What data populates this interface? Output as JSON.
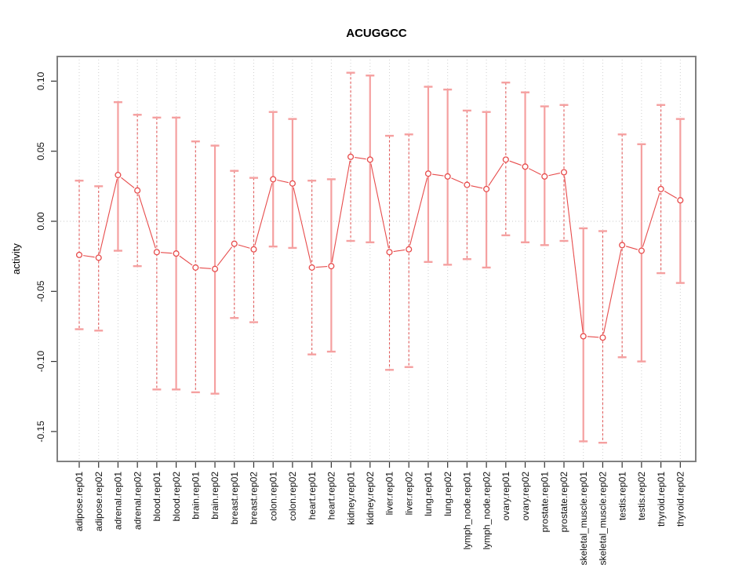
{
  "chart_data": {
    "type": "line",
    "subtype": "points-with-error-bars",
    "title": "ACUGGCC",
    "xlabel": "",
    "ylabel": "activity",
    "ylim": [
      -0.17,
      0.12
    ],
    "ytick_values": [
      0.1,
      0.05,
      0.0,
      -0.05,
      -0.1,
      -0.15
    ],
    "ytick_labels": [
      "0.10",
      "0.05",
      "0.00",
      "-0.05",
      "-0.10",
      "-0.15"
    ],
    "grid": "vertical dotted gridline at every category; dotted horizontal reference line at y = 0",
    "legend_position": "none",
    "marker": "open-circle",
    "categories": [
      "adipose.rep01",
      "adipose.rep02",
      "adrenal.rep01",
      "adrenal.rep02",
      "blood.rep01",
      "blood.rep02",
      "brain.rep01",
      "brain.rep02",
      "breast.rep01",
      "breast.rep02",
      "colon.rep01",
      "colon.rep02",
      "heart.rep01",
      "heart.rep02",
      "kidney.rep01",
      "kidney.rep02",
      "liver.rep01",
      "liver.rep02",
      "lung.rep01",
      "lung.rep02",
      "lymph_node.rep01",
      "lymph_node.rep02",
      "ovary.rep01",
      "ovary.rep02",
      "prostate.rep01",
      "prostate.rep02",
      "skeletal_muscle.rep01",
      "skeletal_muscle.rep02",
      "testis.rep01",
      "testis.rep02",
      "thyroid.rep01",
      "thyroid.rep02"
    ],
    "series": [
      {
        "name": "activity",
        "values": [
          -0.024,
          -0.026,
          0.033,
          0.022,
          -0.022,
          -0.023,
          -0.033,
          -0.034,
          -0.016,
          -0.02,
          0.03,
          0.027,
          -0.033,
          -0.032,
          0.046,
          0.044,
          -0.022,
          -0.02,
          0.034,
          0.032,
          0.026,
          0.023,
          0.044,
          0.039,
          0.032,
          0.035,
          -0.082,
          -0.083,
          -0.017,
          -0.021,
          0.023,
          0.015
        ],
        "err_low": [
          -0.077,
          -0.078,
          -0.021,
          -0.032,
          -0.12,
          -0.12,
          -0.122,
          -0.123,
          -0.069,
          -0.072,
          -0.018,
          -0.019,
          -0.095,
          -0.093,
          -0.014,
          -0.015,
          -0.106,
          -0.104,
          -0.029,
          -0.031,
          -0.027,
          -0.033,
          -0.01,
          -0.015,
          -0.017,
          -0.014,
          -0.157,
          -0.158,
          -0.097,
          -0.1,
          -0.037,
          -0.044
        ],
        "err_high": [
          0.029,
          0.025,
          0.085,
          0.076,
          0.074,
          0.074,
          0.057,
          0.054,
          0.036,
          0.031,
          0.078,
          0.073,
          0.029,
          0.03,
          0.106,
          0.104,
          0.061,
          0.062,
          0.096,
          0.094,
          0.079,
          0.078,
          0.099,
          0.092,
          0.082,
          0.083,
          -0.005,
          -0.007,
          0.062,
          0.055,
          0.083,
          0.073
        ],
        "whisker_styles": [
          "dashed",
          "dashed",
          "solid",
          "dashed",
          "dashed",
          "solid",
          "dashed",
          "solid",
          "dashed",
          "dashed",
          "solid",
          "solid",
          "dashed",
          "solid",
          "dashed",
          "solid",
          "dashed",
          "dashed",
          "solid",
          "solid",
          "dashed",
          "solid",
          "dashed",
          "solid",
          "solid",
          "dashed",
          "solid",
          "dashed",
          "dashed",
          "solid",
          "dashed",
          "solid"
        ]
      }
    ],
    "colors": {
      "point": "#e74c4c",
      "connector": "#e74c4c",
      "whisker_solid": "#f5a0a0",
      "whisker_dashed": "#e25d5d",
      "whisker_cap": "#f5a0a0",
      "gridline": "#cfcfcf",
      "zero_line": "#c8c8c8",
      "plot_border": "#808080",
      "tick": "#333333",
      "background": "#ffffff"
    }
  }
}
